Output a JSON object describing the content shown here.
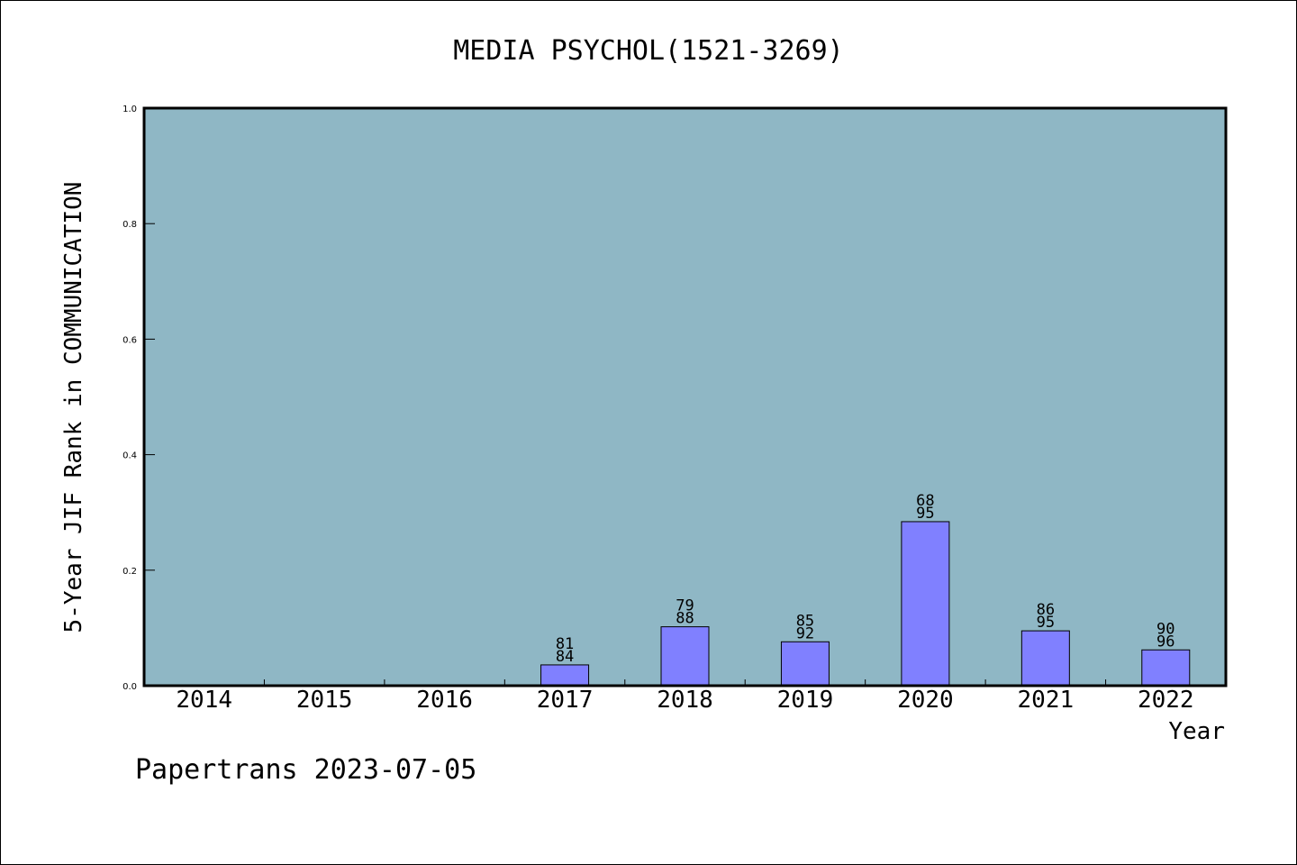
{
  "chart_data": {
    "type": "bar",
    "title": "MEDIA PSYCHOL(1521-3269)",
    "xlabel": "Year",
    "ylabel": "5-Year JIF Rank in COMMUNICATION",
    "categories": [
      "2014",
      "2015",
      "2016",
      "2017",
      "2018",
      "2019",
      "2020",
      "2021",
      "2022"
    ],
    "values": [
      null,
      null,
      null,
      0.036,
      0.102,
      0.076,
      0.284,
      0.095,
      0.062
    ],
    "labels": [
      null,
      null,
      null,
      [
        "81",
        "84"
      ],
      [
        "79",
        "88"
      ],
      [
        "85",
        "92"
      ],
      [
        "68",
        "95"
      ],
      [
        "86",
        "95"
      ],
      [
        "90",
        "96"
      ]
    ],
    "ylim": [
      0,
      1.0
    ],
    "yticks": [
      "0.0",
      "0.2",
      "0.4",
      "0.6",
      "0.8",
      "1.0"
    ],
    "grid": false,
    "colors": {
      "plot_background": "#8fb7c5",
      "bar": "#8080ff",
      "axis": "#000000"
    }
  },
  "footer": {
    "source": "Papertrans 2023-07-05"
  }
}
